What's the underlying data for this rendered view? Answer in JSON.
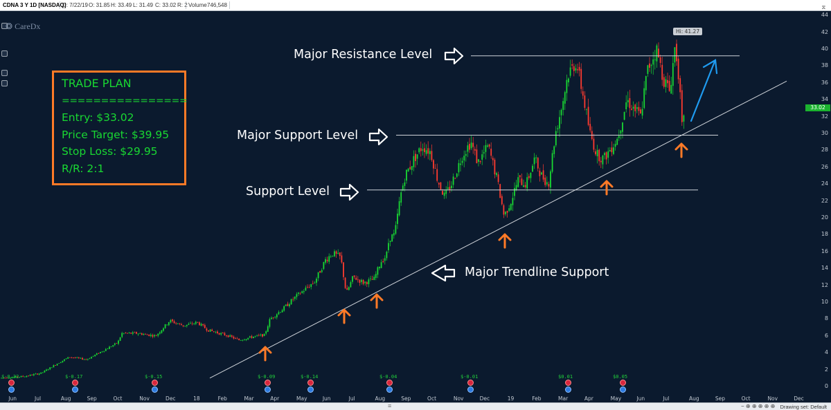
{
  "header": {
    "symbol": "CDNA 3 Y 1D [NASDAQ]",
    "date": "D: 7/22/19",
    "open": "O: 31.85",
    "high": "H: 33.49",
    "low": "L: 31.49",
    "close": "C: 33.02",
    "range": "R: 2",
    "volume_label": "Volume",
    "volume": "746,548"
  },
  "watermark": "CareDx",
  "trade_plan": {
    "title": "TRADE PLAN",
    "divider": "================",
    "entry": "Entry: $33.02",
    "target": "Price Target: $39.95",
    "stop": "Stop Loss: $29.95",
    "rr": "R/R: 2:1"
  },
  "annotations": {
    "major_resistance": "Major Resistance Level",
    "major_support": "Major Support Level",
    "support": "Support Level",
    "trendline": "Major Trendline Support"
  },
  "tags": {
    "hi": "Hi: 41.27",
    "last": "33.02"
  },
  "earnings": [
    "$-0.32",
    "$-0.17",
    "$-0.15",
    "$-0.09",
    "$-0.14",
    "$-0.04",
    "$-0.01",
    "$0.01",
    "$0.05"
  ],
  "bottombar": {
    "drawing_set": "Drawing set: Default"
  },
  "colors": {
    "background": "#0b1a2e",
    "up": "#19d832",
    "down": "#ff3b2f",
    "accent": "#ff7a27",
    "projection": "#1f9bf0"
  },
  "chart_data": {
    "type": "candlestick",
    "y_ticks": [
      0,
      2,
      4,
      6,
      8,
      10,
      12,
      14,
      16,
      18,
      20,
      22,
      24,
      26,
      28,
      30,
      32,
      34,
      36,
      38,
      40,
      42,
      44
    ],
    "ylim": [
      -1.5,
      44
    ],
    "x_ticks": [
      "Jun",
      "Jul",
      "Aug",
      "Sep",
      "Oct",
      "Nov",
      "Dec",
      "18",
      "Feb",
      "Mar",
      "Apr",
      "May",
      "Jun",
      "Jul",
      "Aug",
      "Sep",
      "Oct",
      "Nov",
      "Dec",
      "19",
      "Feb",
      "Mar",
      "Apr",
      "May",
      "Jun",
      "Jul",
      "Aug",
      "Sep",
      "Oct",
      "Nov",
      "Dec"
    ],
    "price_path": [
      [
        0,
        1.0
      ],
      [
        35,
        1.2
      ],
      [
        60,
        1.6
      ],
      [
        80,
        2.6
      ],
      [
        100,
        3.5
      ],
      [
        125,
        3.2
      ],
      [
        150,
        4.3
      ],
      [
        170,
        5.2
      ],
      [
        176,
        6.3
      ],
      [
        200,
        6.3
      ],
      [
        225,
        6.0
      ],
      [
        245,
        7.8
      ],
      [
        265,
        7.2
      ],
      [
        285,
        7.6
      ],
      [
        300,
        6.7
      ],
      [
        330,
        6.0
      ],
      [
        345,
        5.5
      ],
      [
        365,
        5.9
      ],
      [
        382,
        6.1
      ],
      [
        390,
        8.0
      ],
      [
        410,
        9.3
      ],
      [
        425,
        10.5
      ],
      [
        440,
        11.5
      ],
      [
        455,
        12.5
      ],
      [
        470,
        15.0
      ],
      [
        480,
        15.8
      ],
      [
        492,
        15.3
      ],
      [
        500,
        11.0
      ],
      [
        510,
        13.0
      ],
      [
        525,
        12.3
      ],
      [
        540,
        12.7
      ],
      [
        550,
        14.8
      ],
      [
        558,
        15.5
      ],
      [
        562,
        17.6
      ],
      [
        570,
        18.0
      ],
      [
        578,
        22.5
      ],
      [
        585,
        25.0
      ],
      [
        598,
        27.0
      ],
      [
        610,
        28.5
      ],
      [
        622,
        27.8
      ],
      [
        632,
        24.5
      ],
      [
        642,
        22.5
      ],
      [
        652,
        24.0
      ],
      [
        668,
        27.5
      ],
      [
        680,
        29.0
      ],
      [
        690,
        26.5
      ],
      [
        705,
        28.5
      ],
      [
        718,
        24.5
      ],
      [
        728,
        20.2
      ],
      [
        738,
        22.0
      ],
      [
        748,
        24.5
      ],
      [
        760,
        24.0
      ],
      [
        772,
        27.0
      ],
      [
        782,
        25.0
      ],
      [
        792,
        24.0
      ],
      [
        802,
        30.0
      ],
      [
        812,
        33.5
      ],
      [
        820,
        37.0
      ],
      [
        832,
        38.5
      ],
      [
        842,
        34.5
      ],
      [
        852,
        30.0
      ],
      [
        862,
        27.5
      ],
      [
        872,
        27.0
      ],
      [
        880,
        28.0
      ],
      [
        892,
        29.5
      ],
      [
        905,
        34.0
      ],
      [
        915,
        33.0
      ],
      [
        925,
        32.0
      ],
      [
        935,
        37.5
      ],
      [
        948,
        40.0
      ],
      [
        958,
        36.5
      ],
      [
        967,
        35.0
      ],
      [
        975,
        40.5
      ],
      [
        980,
        37.0
      ],
      [
        985,
        30.5
      ],
      [
        990,
        32.5
      ]
    ],
    "levels": {
      "major_resistance": 39.2,
      "major_support": 29.8,
      "support": 23.3
    },
    "trendline": {
      "from": [
        303,
        1.0
      ],
      "to": [
        1136,
        36.2
      ]
    }
  }
}
